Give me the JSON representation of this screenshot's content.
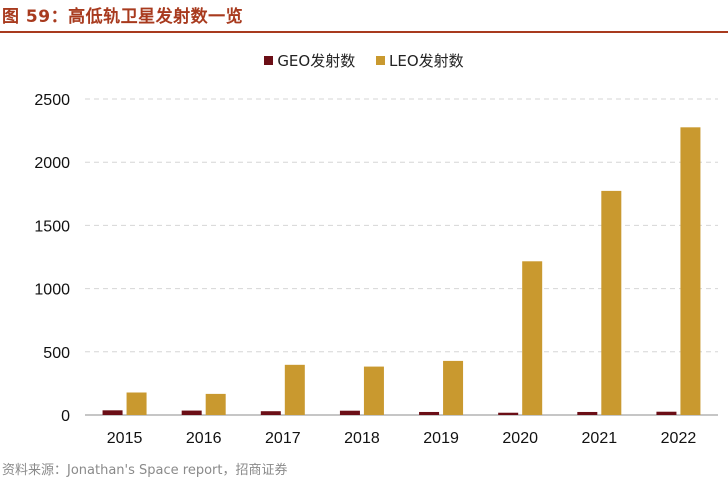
{
  "figure": {
    "title": "图 59：高低轨卫星发射数一览",
    "source": "资料来源：Jonathan's Space report，招商证券"
  },
  "colors": {
    "title": "#a83a1e",
    "geo": "#6b0e16",
    "leo": "#c9992f",
    "grid": "#d6d6d6"
  },
  "chart_data": {
    "type": "bar",
    "categories": [
      "2015",
      "2016",
      "2017",
      "2018",
      "2019",
      "2020",
      "2021",
      "2022"
    ],
    "series": [
      {
        "name": "GEO发射数",
        "values": [
          37,
          35,
          30,
          34,
          24,
          18,
          24,
          26
        ]
      },
      {
        "name": "LEO发射数",
        "values": [
          178,
          167,
          397,
          383,
          428,
          1216,
          1773,
          2276
        ]
      }
    ],
    "ylim": [
      0,
      2500
    ],
    "yticks": [
      0,
      500,
      1000,
      1500,
      2000,
      2500
    ],
    "grid": true,
    "legend": "top-center"
  }
}
